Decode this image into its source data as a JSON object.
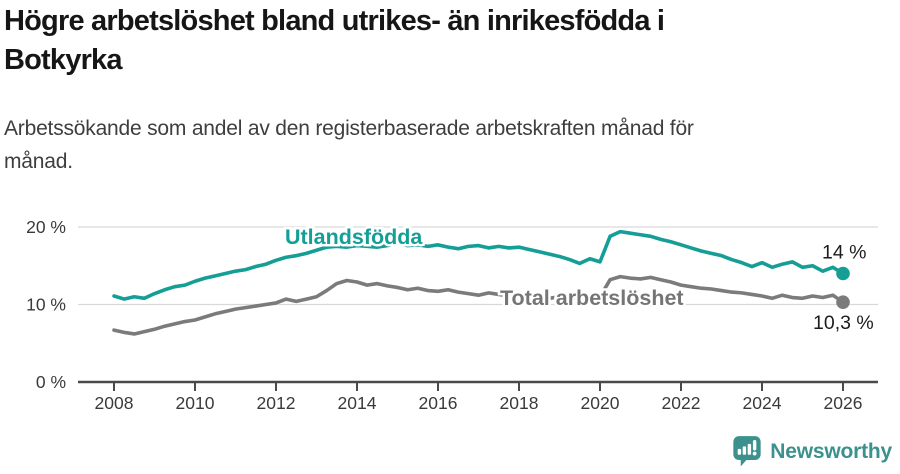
{
  "title": {
    "full": "Högre arbetslöshet bland utrikes- än inrikesfödda i Botkyrka",
    "line1": "Högre arbetslöshet bland utrikes- än inrikesfödda i",
    "line2": "Botkyrka"
  },
  "subtitle": {
    "full": "Arbetssökande som andel av den registerbaserade arbetskraften månad för månad.",
    "line1": "Arbetssökande som andel av den registerbaserade arbetskraften månad för",
    "line2": "månad."
  },
  "colors": {
    "foreign_born_line": "#149e96",
    "total_line": "#7b7b7b",
    "total_label": "#757575",
    "gridline": "#d9d9d9",
    "axis": "#4a4a4a",
    "tick_text": "#3a3a3a",
    "annotation_text": "#1d1d1d",
    "logo": "#3c918e",
    "background": "#ffffff"
  },
  "chart_data": {
    "type": "line",
    "title": "Högre arbetslöshet bland utrikes- än inrikesfödda i Botkyrka",
    "subtitle": "Arbetssökande som andel av den registerbaserade arbetskraften månad för månad.",
    "xlabel": "",
    "ylabel": "",
    "ylim": [
      0,
      24
    ],
    "xlim": [
      2007.3,
      2026.9
    ],
    "grid": "horizontal",
    "legend": "inline-labels",
    "yticks": [
      {
        "value": 0,
        "label": "0 %"
      },
      {
        "value": 10,
        "label": "10 %"
      },
      {
        "value": 20,
        "label": "20 %"
      }
    ],
    "xticks": [
      2008,
      2010,
      2012,
      2014,
      2016,
      2018,
      2020,
      2022,
      2024,
      2026
    ],
    "x": [
      2008,
      2008.25,
      2008.5,
      2008.75,
      2009,
      2009.25,
      2009.5,
      2009.75,
      2010,
      2010.25,
      2010.5,
      2010.75,
      2011,
      2011.25,
      2011.5,
      2011.75,
      2012,
      2012.25,
      2012.5,
      2012.75,
      2013,
      2013.25,
      2013.5,
      2013.75,
      2014,
      2014.25,
      2014.5,
      2014.75,
      2015,
      2015.25,
      2015.5,
      2015.75,
      2016,
      2016.25,
      2016.5,
      2016.75,
      2017,
      2017.25,
      2017.5,
      2017.75,
      2018,
      2018.25,
      2018.5,
      2018.75,
      2019,
      2019.25,
      2019.5,
      2019.75,
      2020,
      2020.25,
      2020.5,
      2020.75,
      2021,
      2021.25,
      2021.5,
      2021.75,
      2022,
      2022.25,
      2022.5,
      2022.75,
      2023,
      2023.25,
      2023.5,
      2023.75,
      2024,
      2024.25,
      2024.5,
      2024.75,
      2025,
      2025.25,
      2025.5,
      2025.75,
      2026
    ],
    "series": [
      {
        "name": "Utlandsfödda",
        "color": "#149e96",
        "end_label": "14 %",
        "end_value": 14.0,
        "values": [
          11.1,
          10.7,
          11.0,
          10.8,
          11.4,
          11.9,
          12.3,
          12.5,
          13.0,
          13.4,
          13.7,
          14.0,
          14.3,
          14.5,
          14.9,
          15.2,
          15.7,
          16.1,
          16.3,
          16.6,
          17.0,
          17.4,
          17.5,
          17.4,
          17.6,
          17.5,
          17.4,
          17.6,
          17.9,
          17.6,
          17.7,
          17.5,
          17.7,
          17.4,
          17.2,
          17.5,
          17.6,
          17.3,
          17.5,
          17.3,
          17.4,
          17.1,
          16.8,
          16.5,
          16.2,
          15.8,
          15.3,
          15.9,
          15.5,
          18.8,
          19.4,
          19.2,
          19.0,
          18.8,
          18.4,
          18.1,
          17.7,
          17.3,
          16.9,
          16.6,
          16.3,
          15.8,
          15.4,
          14.9,
          15.4,
          14.8,
          15.2,
          15.5,
          14.8,
          15.0,
          14.3,
          14.8,
          14.0
        ]
      },
      {
        "name": "Total arbetslöshet",
        "color": "#7b7b7b",
        "end_label": "10,3 %",
        "end_value": 10.3,
        "values": [
          6.7,
          6.4,
          6.2,
          6.5,
          6.8,
          7.2,
          7.5,
          7.8,
          8.0,
          8.4,
          8.8,
          9.1,
          9.4,
          9.6,
          9.8,
          10.0,
          10.2,
          10.7,
          10.4,
          10.7,
          11.0,
          11.8,
          12.7,
          13.1,
          12.9,
          12.5,
          12.7,
          12.4,
          12.2,
          11.9,
          12.1,
          11.8,
          11.7,
          11.9,
          11.6,
          11.4,
          11.2,
          11.5,
          11.3,
          11.1,
          11.0,
          10.9,
          11.1,
          10.8,
          11.0,
          10.8,
          10.9,
          10.7,
          11.0,
          13.2,
          13.6,
          13.4,
          13.3,
          13.5,
          13.2,
          12.9,
          12.5,
          12.3,
          12.1,
          12.0,
          11.8,
          11.6,
          11.5,
          11.3,
          11.1,
          10.8,
          11.2,
          10.9,
          10.8,
          11.1,
          10.9,
          11.2,
          10.3
        ]
      }
    ]
  },
  "logo": {
    "text": "Newsworthy"
  }
}
